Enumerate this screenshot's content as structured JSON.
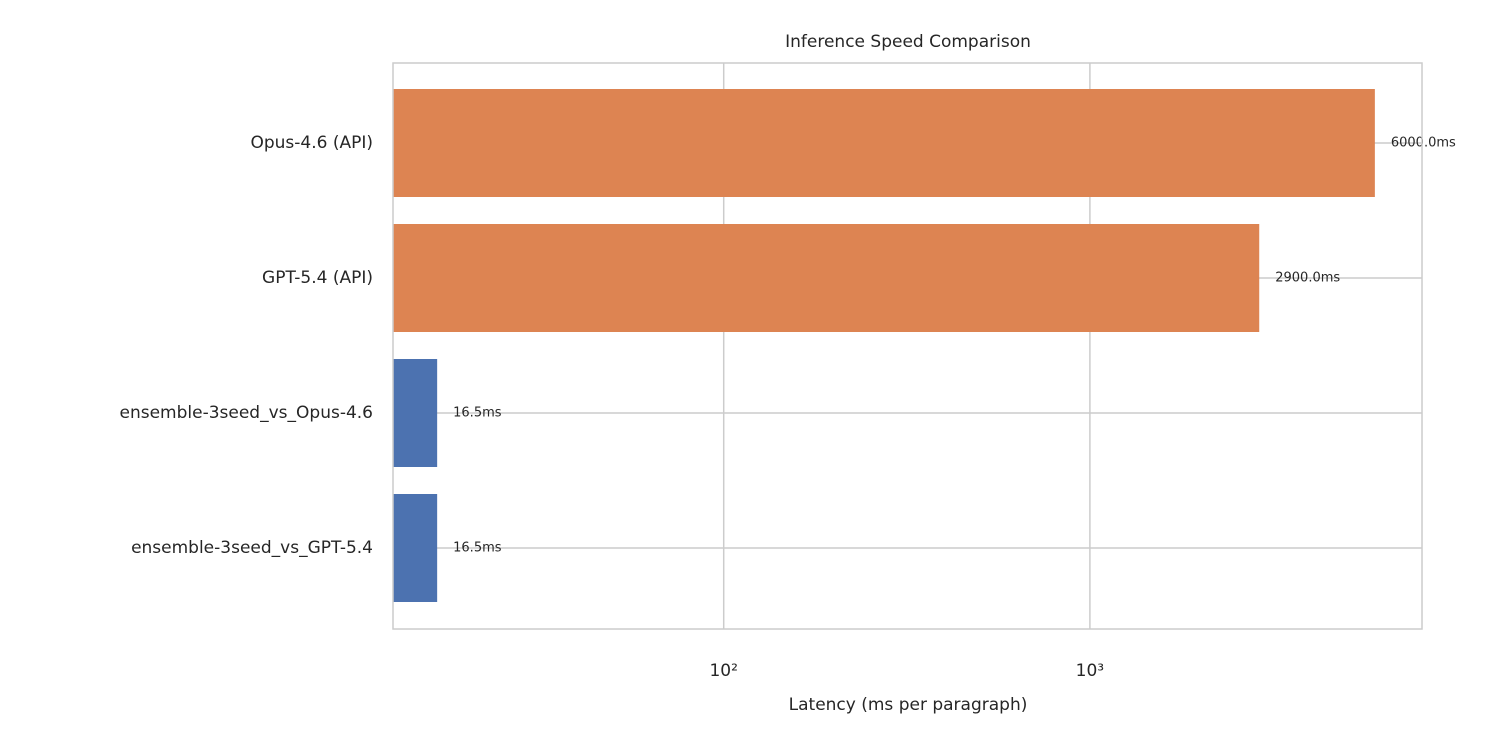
{
  "chart_data": {
    "type": "barh",
    "title": "Inference Speed Comparison",
    "x_label": "Latency (ms per paragraph)",
    "categories": [
      "Opus-4.6 (API)",
      "GPT-5.4 (API)",
      "ensemble-3seed_vs_Opus-4.6",
      "ensemble-3seed_vs_GPT-5.4"
    ],
    "values": [
      6000,
      2900,
      16.5,
      16.5
    ],
    "value_labels": [
      "6000.0ms",
      "2900.0ms",
      "16.5ms",
      "16.5ms"
    ],
    "colors": [
      "#dd8452",
      "#dd8452",
      "#4c72b0",
      "#4c72b0"
    ],
    "x_scale": "log",
    "xlim": [
      12.5,
      8070
    ],
    "xticks": [
      {
        "value": 100,
        "label": "10²"
      },
      {
        "value": 1000,
        "label": "10³"
      }
    ],
    "grid": true
  }
}
